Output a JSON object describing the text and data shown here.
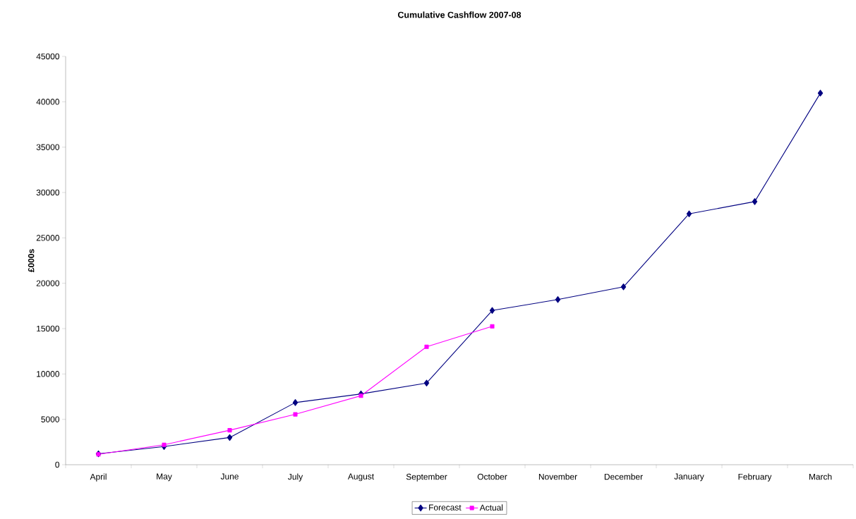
{
  "chart_data": {
    "type": "line",
    "title": "Cumulative Cashflow 2007-08",
    "ylabel": "£000s",
    "categories": [
      "April",
      "May",
      "June",
      "July",
      "August",
      "September",
      "October",
      "November",
      "December",
      "January",
      "February",
      "March"
    ],
    "series": [
      {
        "name": "Forecast",
        "color": "#000080",
        "marker": "diamond",
        "values": [
          1200,
          2000,
          3000,
          6850,
          7800,
          9000,
          17000,
          18200,
          19600,
          27650,
          29000,
          40950
        ]
      },
      {
        "name": "Actual",
        "color": "#ff00ff",
        "marker": "square",
        "values": [
          1150,
          2200,
          3800,
          5550,
          7600,
          13000,
          15250,
          null,
          null,
          null,
          null,
          null
        ]
      }
    ],
    "ylim": [
      0,
      45000
    ],
    "yticks": [
      0,
      5000,
      10000,
      15000,
      20000,
      25000,
      30000,
      35000,
      40000,
      45000
    ],
    "grid": false,
    "legend": "bottom"
  }
}
